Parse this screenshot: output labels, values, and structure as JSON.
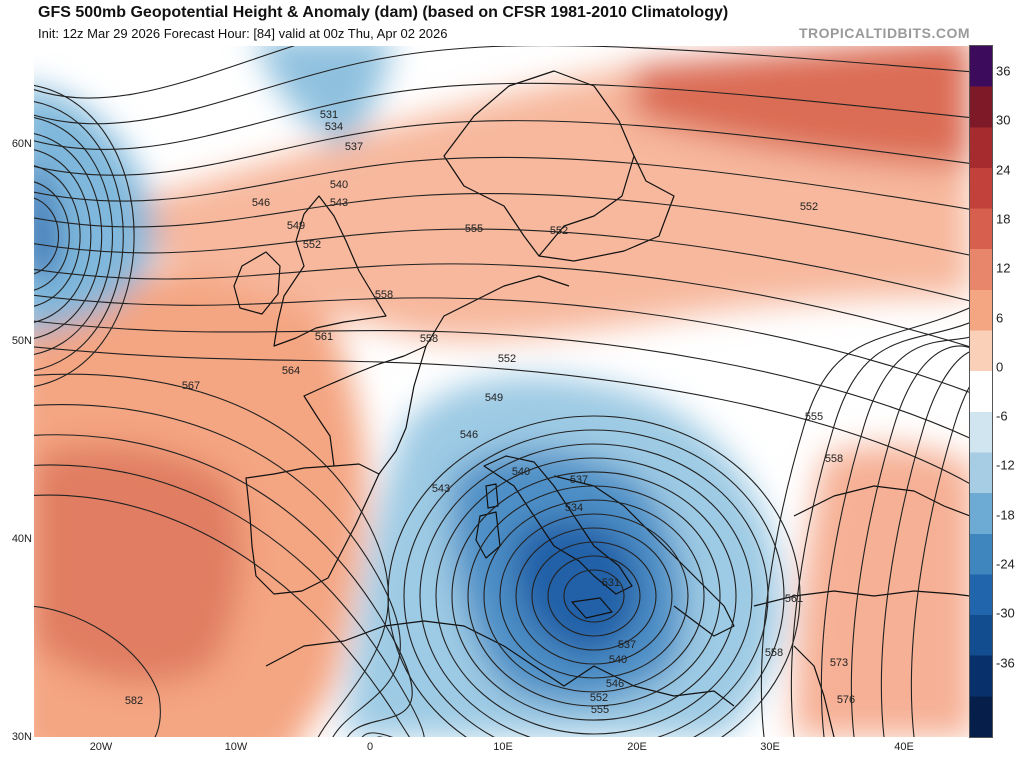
{
  "header": {
    "title": "GFS 500mb Geopotential Height & Anomaly (dam) (based on CFSR 1981-2010 Climatology)",
    "subtitle": "Init: 12z Mar 29 2026   Forecast Hour: [84]   valid at 00z Thu, Apr 02 2026",
    "brand": "TROPICALTIDBITS.COM"
  },
  "colorbar": {
    "labels": [
      "36",
      "30",
      "24",
      "18",
      "12",
      "6",
      "0",
      "-6",
      "-12",
      "-18",
      "-24",
      "-30",
      "-36"
    ],
    "colors": [
      "#3d0b5c",
      "#7e1a27",
      "#a52b2f",
      "#c2413a",
      "#d6604d",
      "#e8866b",
      "#f4a582",
      "#fbd0b8",
      "#ffffff",
      "#d1e5f0",
      "#a6cde3",
      "#6eabd4",
      "#3f86be",
      "#2166ac",
      "#124e8f",
      "#08306b",
      "#051f4a"
    ]
  },
  "map": {
    "lat_labels": [
      "60N",
      "50N",
      "40N",
      "30N"
    ],
    "lon_labels": [
      "20W",
      "10W",
      "0",
      "10E",
      "20E",
      "30E",
      "40E"
    ],
    "contour_labels": [
      "531",
      "534",
      "537",
      "540",
      "543",
      "546",
      "549",
      "552",
      "555",
      "558",
      "561",
      "564",
      "567",
      "582",
      "549",
      "546",
      "543",
      "540",
      "537",
      "534",
      "531",
      "537",
      "540",
      "546",
      "552",
      "555",
      "558",
      "561",
      "573",
      "576",
      "552",
      "555",
      "558",
      "552",
      "552",
      "558"
    ]
  }
}
